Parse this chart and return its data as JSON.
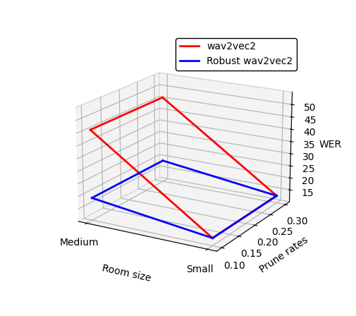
{
  "wav2vec2": {
    "medium_wer": 46,
    "small_wer": 13,
    "color": "#ff0000",
    "label": "wav2vec2"
  },
  "robust_wav2vec2": {
    "medium_wer": 19,
    "small_wer": 13,
    "color": "#0000ff",
    "label": "Robust wav2vec2"
  },
  "prune_rates": [
    0.1,
    0.15,
    0.2,
    0.25,
    0.3
  ],
  "room_medium": 0,
  "room_small": 1,
  "room_labels": [
    "Medium",
    "Small"
  ],
  "xlim": [
    -0.2,
    1.2
  ],
  "ylim": [
    0.08,
    0.32
  ],
  "zlim": [
    10,
    55
  ],
  "zticks": [
    15,
    20,
    25,
    30,
    35,
    40,
    45,
    50
  ],
  "xlabel": "Room size",
  "ylabel": "Prune rates",
  "zlabel": "WER",
  "linewidth": 2,
  "elev": 18,
  "azim": -60
}
